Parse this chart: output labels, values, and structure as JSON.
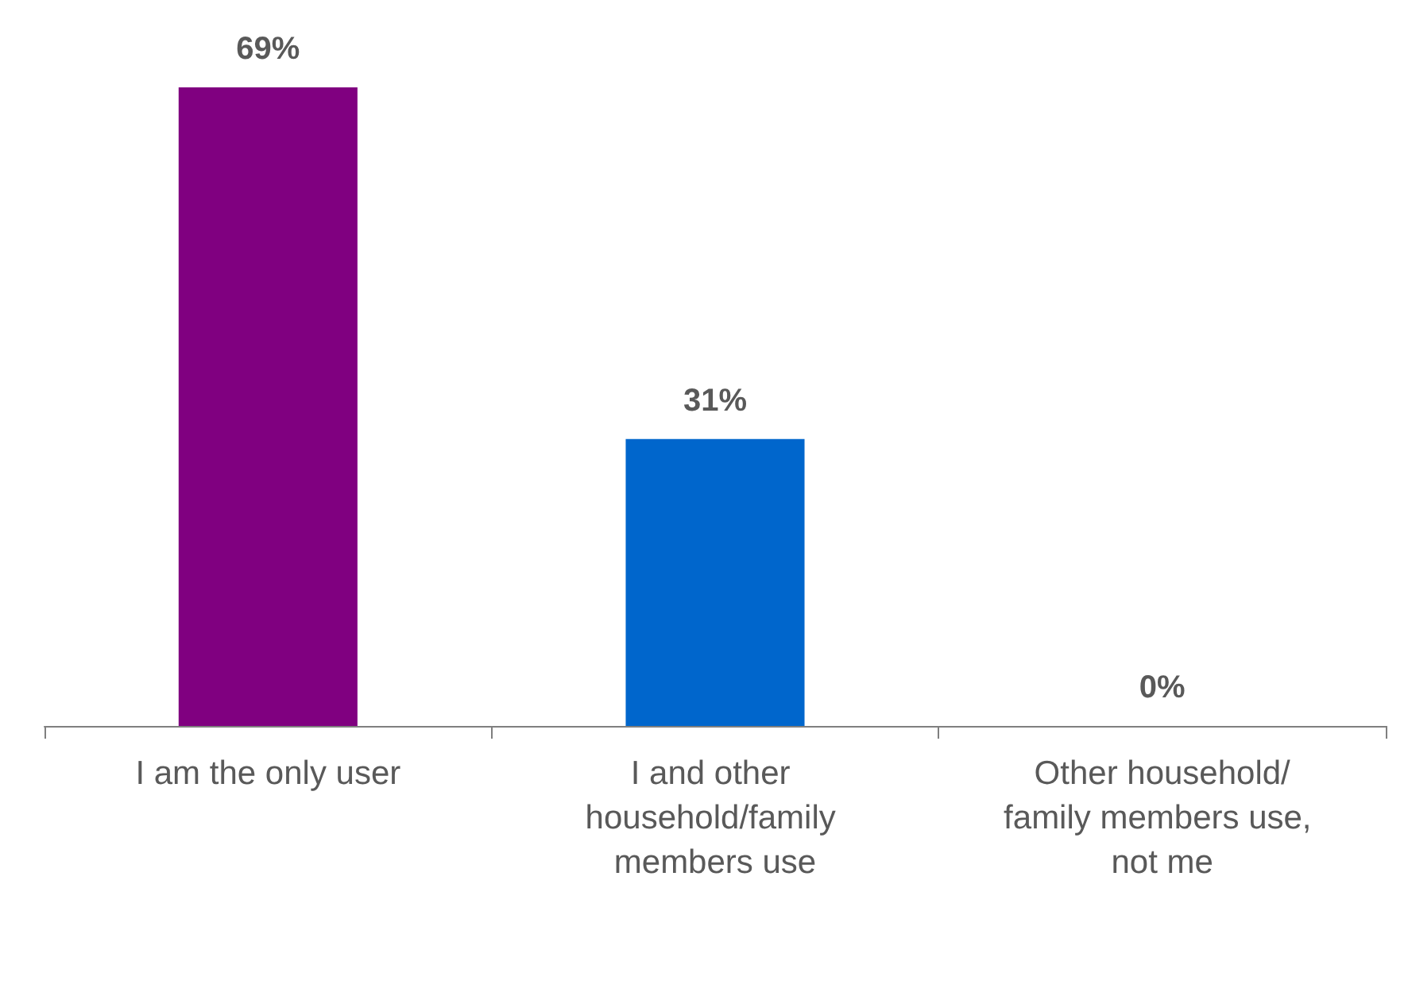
{
  "chart_data": {
    "type": "bar",
    "categories": [
      "I am the only user",
      "I and other household/family members use",
      "Other household/family members use, not me"
    ],
    "values": [
      69,
      31,
      0
    ],
    "colors": [
      "#800080",
      "#0066cc",
      "#7f7f7f"
    ],
    "value_labels": [
      "69%",
      "31%",
      "0%"
    ],
    "grid": false
  }
}
